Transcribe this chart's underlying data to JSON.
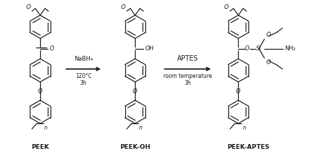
{
  "background_color": "#ffffff",
  "line_color": "#1a1a1a",
  "line_width": 0.9,
  "text_color": "#1a1a1a",
  "label_PEEK": "PEEK",
  "label_PEEK_OH": "PEEK-OH",
  "label_PEEK_APTES": "PEEK-APTES",
  "arrow1_label_line1": "NaBH₄",
  "arrow1_label_line2": "120°C",
  "arrow1_label_line3": "3h",
  "arrow2_label_line1": "APTES",
  "arrow2_label_line2": "room temperature",
  "arrow2_label_line3": "3h",
  "fig_width": 4.74,
  "fig_height": 2.22,
  "dpi": 100
}
